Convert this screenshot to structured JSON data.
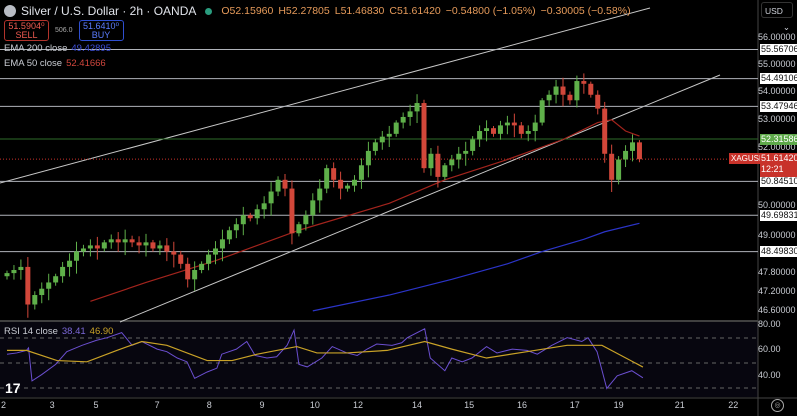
{
  "header": {
    "symbol_title": "Silver / U.S. Dollar · 2h · OANDA",
    "open": "O52.15960",
    "high": "H52.27805",
    "low": "L51.46830",
    "close": "C51.61420",
    "change": "−0.54800 (−1.05%)",
    "change2": "−0.30005 (−0.58%)"
  },
  "trade": {
    "sell_price": "51.5904⁰",
    "sell_label": "SELL",
    "spread": "506.0",
    "buy_price": "51.6410⁰",
    "buy_label": "BUY"
  },
  "indicators": {
    "ema200_label": "EMA 200 close",
    "ema200_value": "49.42895",
    "ema50_label": "EMA 50 close",
    "ema50_value": "52.41666",
    "rsi_label": "RSI 14 close",
    "rsi_value": "38.41",
    "rsi_ma_value": "46.90"
  },
  "currency": "USD",
  "ticker": "XAGUSD",
  "current_price": "51.61420",
  "countdown": "12:21",
  "price_ticks": [
    "56.00000",
    "55.00000",
    "54.00000",
    "53.00000",
    "52.00000",
    "50.00000",
    "49.00000",
    "47.80000",
    "47.20000",
    "46.60000"
  ],
  "levels": [
    {
      "value": "55.56706",
      "style": "white"
    },
    {
      "value": "54.49106",
      "style": "white"
    },
    {
      "value": "53.47946",
      "style": "white"
    },
    {
      "value": "52.31586",
      "style": "green"
    },
    {
      "value": "50.84510",
      "style": "white"
    },
    {
      "value": "49.69831",
      "style": "white"
    },
    {
      "value": "48.49830",
      "style": "white"
    }
  ],
  "rsi_ticks": [
    "80.00",
    "60.00",
    "40.00"
  ],
  "x_ticks": [
    {
      "label": "2",
      "i": -0.5
    },
    {
      "label": "3",
      "i": 6.5
    },
    {
      "label": "5",
      "i": 12.8
    },
    {
      "label": "7",
      "i": 21.6
    },
    {
      "label": "8",
      "i": 29.1
    },
    {
      "label": "9",
      "i": 36.7
    },
    {
      "label": "10",
      "i": 44.3
    },
    {
      "label": "12",
      "i": 50.5
    },
    {
      "label": "14",
      "i": 59
    },
    {
      "label": "15",
      "i": 66.5
    },
    {
      "label": "16",
      "i": 74.1
    },
    {
      "label": "17",
      "i": 81.7
    },
    {
      "label": "19",
      "i": 88
    },
    {
      "label": "21",
      "i": 96.8
    },
    {
      "label": "22",
      "i": 104.5
    }
  ],
  "colors": {
    "up": "#5fb04a",
    "down": "#d2473a",
    "ema50": "#a3241d",
    "ema200": "#2b34c8",
    "rsi": "#6b4fd0",
    "rsi_ma": "#c9a227",
    "level": "#b0b3ba",
    "green_level": "#2e6b2a"
  },
  "chart_data": {
    "type": "candlestick",
    "scale": "log",
    "ylim": [
      46.4,
      56.6
    ],
    "closes": [
      47.8,
      47.9,
      48.0,
      46.8,
      47.1,
      47.3,
      47.5,
      47.7,
      48.0,
      48.2,
      48.5,
      48.6,
      48.7,
      48.6,
      48.8,
      48.9,
      48.8,
      48.9,
      48.8,
      48.7,
      48.8,
      48.6,
      48.7,
      48.5,
      48.4,
      48.1,
      47.6,
      47.9,
      48.1,
      48.4,
      48.6,
      48.9,
      49.2,
      49.4,
      49.7,
      49.6,
      49.9,
      50.1,
      50.5,
      50.9,
      50.6,
      49.1,
      49.4,
      49.7,
      50.2,
      50.6,
      51.3,
      50.9,
      50.6,
      50.7,
      50.9,
      51.4,
      51.9,
      52.2,
      52.4,
      52.5,
      52.9,
      53.1,
      53.3,
      53.6,
      51.3,
      51.8,
      51.0,
      51.4,
      51.6,
      51.8,
      51.9,
      52.3,
      52.6,
      52.7,
      52.5,
      52.8,
      52.9,
      52.8,
      52.5,
      52.6,
      52.9,
      53.7,
      53.9,
      54.2,
      53.9,
      53.7,
      54.4,
      54.3,
      53.9,
      53.4,
      51.8,
      50.9,
      51.6,
      51.9,
      52.2,
      51.61
    ],
    "ema50": [
      [
        12,
        46.9
      ],
      [
        20,
        47.5
      ],
      [
        30,
        48.2
      ],
      [
        42,
        49.2
      ],
      [
        55,
        50.1
      ],
      [
        63,
        50.9
      ],
      [
        72,
        51.6
      ],
      [
        80,
        52.3
      ],
      [
        85,
        52.9
      ],
      [
        87,
        53.0
      ],
      [
        89,
        52.6
      ],
      [
        91,
        52.42
      ]
    ],
    "ema200": [
      [
        44,
        46.6
      ],
      [
        55,
        47.1
      ],
      [
        64,
        47.6
      ],
      [
        72,
        48.1
      ],
      [
        77,
        48.5
      ],
      [
        83,
        48.9
      ],
      [
        86,
        49.15
      ],
      [
        91,
        49.43
      ]
    ],
    "rsi": [
      [
        0,
        57
      ],
      [
        1.4,
        58
      ],
      [
        2.8,
        60
      ],
      [
        3.1,
        62
      ],
      [
        3.6,
        36
      ],
      [
        5,
        41
      ],
      [
        7,
        49
      ],
      [
        8.6,
        59
      ],
      [
        10.8,
        64
      ],
      [
        12.9,
        68
      ],
      [
        14.4,
        70
      ],
      [
        16.5,
        74
      ],
      [
        18,
        64
      ],
      [
        19.4,
        67
      ],
      [
        21.6,
        61
      ],
      [
        23,
        59
      ],
      [
        24.5,
        54
      ],
      [
        25.9,
        51
      ],
      [
        27,
        38
      ],
      [
        28.8,
        43
      ],
      [
        30.2,
        46
      ],
      [
        30.9,
        57
      ],
      [
        33,
        61
      ],
      [
        34.5,
        67
      ],
      [
        35.7,
        56
      ],
      [
        37.4,
        54
      ],
      [
        38.8,
        55
      ],
      [
        40.3,
        64
      ],
      [
        41.3,
        76
      ],
      [
        42,
        49
      ],
      [
        43.2,
        47
      ],
      [
        45.3,
        54
      ],
      [
        46.8,
        63
      ],
      [
        48.9,
        58
      ],
      [
        50.4,
        56
      ],
      [
        51.8,
        61
      ],
      [
        53.2,
        65
      ],
      [
        55.4,
        64
      ],
      [
        56.8,
        66
      ],
      [
        57.6,
        70
      ],
      [
        60.1,
        77
      ],
      [
        60.9,
        54
      ],
      [
        63,
        44
      ],
      [
        64,
        54
      ],
      [
        65.5,
        51
      ],
      [
        66.9,
        54
      ],
      [
        69,
        63
      ],
      [
        70.5,
        58
      ],
      [
        72.7,
        61
      ],
      [
        74.8,
        60
      ],
      [
        76.3,
        57
      ],
      [
        78.4,
        64
      ],
      [
        80.6,
        70
      ],
      [
        82.7,
        67
      ],
      [
        83.6,
        70
      ],
      [
        84.9,
        59
      ],
      [
        86.3,
        30
      ],
      [
        87.8,
        40
      ],
      [
        89.9,
        44
      ],
      [
        91.5,
        38.41
      ]
    ],
    "rsi_ma": [
      [
        0,
        60
      ],
      [
        2.8,
        60
      ],
      [
        7.2,
        52
      ],
      [
        11.5,
        51
      ],
      [
        15.8,
        60
      ],
      [
        19.4,
        67
      ],
      [
        23,
        64
      ],
      [
        28.8,
        52
      ],
      [
        32.4,
        52
      ],
      [
        36,
        57
      ],
      [
        41.7,
        63
      ],
      [
        44.6,
        58
      ],
      [
        48.9,
        58
      ],
      [
        54.7,
        60
      ],
      [
        60.1,
        67
      ],
      [
        64,
        61
      ],
      [
        69,
        54
      ],
      [
        74.8,
        59
      ],
      [
        80.6,
        64
      ],
      [
        85.6,
        64
      ],
      [
        91.5,
        46.9
      ]
    ]
  }
}
